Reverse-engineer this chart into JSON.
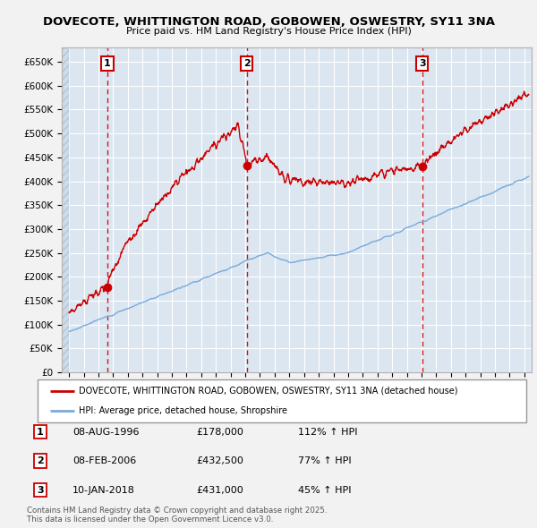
{
  "title1": "DOVECOTE, WHITTINGTON ROAD, GOBOWEN, OSWESTRY, SY11 3NA",
  "title2": "Price paid vs. HM Land Registry's House Price Index (HPI)",
  "ylabel_ticks": [
    "£0",
    "£50K",
    "£100K",
    "£150K",
    "£200K",
    "£250K",
    "£300K",
    "£350K",
    "£400K",
    "£450K",
    "£500K",
    "£550K",
    "£600K",
    "£650K"
  ],
  "ylim": [
    0,
    680000
  ],
  "yticks": [
    0,
    50000,
    100000,
    150000,
    200000,
    250000,
    300000,
    350000,
    400000,
    450000,
    500000,
    550000,
    600000,
    650000
  ],
  "xmin": 1993.5,
  "xmax": 2025.5,
  "background_color": "#dce6f1",
  "fig_bg": "#f2f2f2",
  "grid_color": "#ffffff",
  "red_line_color": "#cc0000",
  "blue_line_color": "#7aabdb",
  "sale1_year": 1996.6,
  "sale1_price": 178000,
  "sale2_year": 2006.1,
  "sale2_price": 432500,
  "sale3_year": 2018.05,
  "sale3_price": 431000,
  "legend_label_red": "DOVECOTE, WHITTINGTON ROAD, GOBOWEN, OSWESTRY, SY11 3NA (detached house)",
  "legend_label_blue": "HPI: Average price, detached house, Shropshire",
  "table_rows": [
    {
      "num": "1",
      "date": "08-AUG-1996",
      "price": "£178,000",
      "hpi": "112% ↑ HPI"
    },
    {
      "num": "2",
      "date": "08-FEB-2006",
      "price": "£432,500",
      "hpi": "77% ↑ HPI"
    },
    {
      "num": "3",
      "date": "10-JAN-2018",
      "price": "£431,000",
      "hpi": "45% ↑ HPI"
    }
  ],
  "footer": "Contains HM Land Registry data © Crown copyright and database right 2025.\nThis data is licensed under the Open Government Licence v3.0."
}
